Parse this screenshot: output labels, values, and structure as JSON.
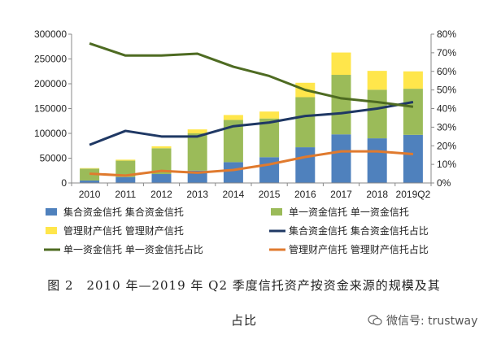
{
  "chart_data": {
    "type": "bar",
    "categories": [
      "2010",
      "2011",
      "2012",
      "2013",
      "2014",
      "2015",
      "2016",
      "2017",
      "2018",
      "2019Q2"
    ],
    "left_axis": {
      "ylim": [
        0,
        300000
      ],
      "ticks": [
        "0",
        "50000",
        "100000",
        "150000",
        "200000",
        "250000",
        "300000"
      ]
    },
    "right_axis": {
      "ylim": [
        0,
        80
      ],
      "ticks": [
        "0%",
        "10%",
        "20%",
        "30%",
        "40%",
        "50%",
        "60%",
        "70%",
        "80%"
      ]
    },
    "bar_series": [
      {
        "name": "集合资金信托 集合资金信托",
        "color": "#4F81BD",
        "values": [
          5000,
          12000,
          18000,
          25000,
          42000,
          52000,
          72000,
          98000,
          90000,
          97000
        ]
      },
      {
        "name": "单一资金信托 单一资金信托",
        "color": "#9BBB59",
        "values": [
          24000,
          33000,
          52000,
          75000,
          85000,
          78000,
          101000,
          120000,
          98000,
          93000
        ]
      },
      {
        "name": "管理财产信托 管理财产信托",
        "color": "#FFE64B",
        "values": [
          1000,
          2000,
          4000,
          8000,
          10000,
          14000,
          29000,
          45000,
          38000,
          35000
        ]
      }
    ],
    "line_series": [
      {
        "name": "集合资金信托 集合资金信托占比",
        "color": "#1F3864",
        "values": [
          20.5,
          28,
          25,
          25,
          30.5,
          32.5,
          36,
          37.5,
          40,
          43.5
        ]
      },
      {
        "name": "单一资金信托 单一资金信托占比",
        "color": "#4E6B22",
        "values": [
          75,
          68.5,
          68.5,
          69.5,
          62.5,
          57.5,
          50,
          45.5,
          43.5,
          41
        ]
      },
      {
        "name": "管理财产信托 管理财产信托占比",
        "color": "#E07A2E",
        "values": [
          5,
          4,
          6.5,
          5.5,
          7,
          10,
          14,
          17,
          17,
          15.5
        ]
      }
    ],
    "grid": false,
    "legend_position": "bottom"
  },
  "caption": {
    "line1": "图 2　2010 年—2019 年 Q2 季度信托资产按资金来源的规模及其",
    "line2": "占比"
  },
  "watermark": {
    "text": "微信号: trustway"
  }
}
